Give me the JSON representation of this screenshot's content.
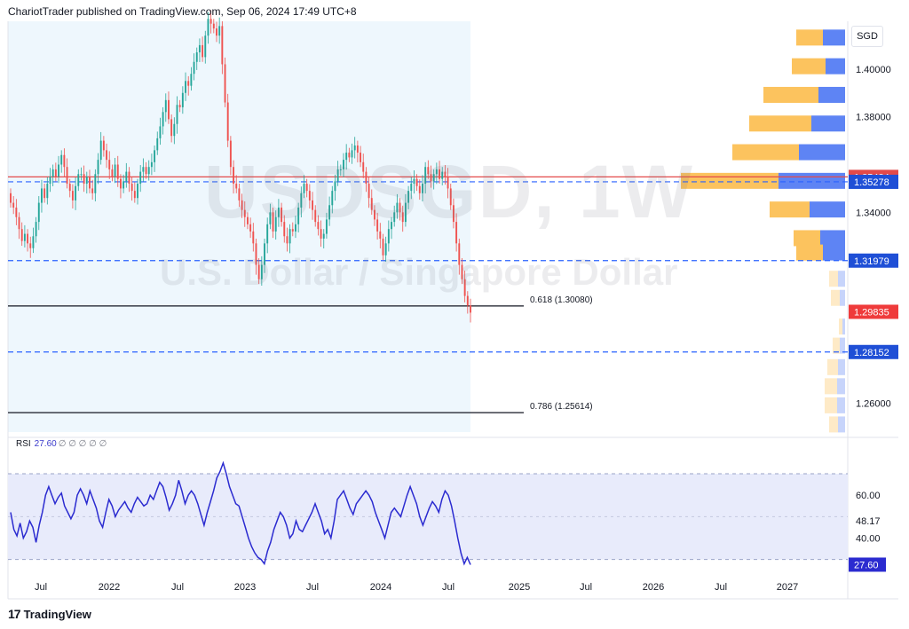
{
  "header": {
    "publisher_line": "ChariotTrader published on TradingView.com, Sep 06, 2024 17:49 UTC+8"
  },
  "symbol_watermark": {
    "title": "USDSGD, 1W",
    "subtitle": "U.S. Dollar / Singapore Dollar"
  },
  "currency_badge": "SGD",
  "footer": {
    "brand": "TradingView",
    "logo_glyph": "17"
  },
  "rsi_label": {
    "name": "RSI",
    "value": "27.60",
    "placeholders": "∅ ∅ ∅ ∅ ∅"
  },
  "colors": {
    "up_candle": "#26a69a",
    "down_candle": "#ef5350",
    "highlight_bg": "#eef7fd",
    "support_dash": "#2962ff",
    "resistance_line": "#e34a4a",
    "fib_line": "#131722",
    "vp_up": "#fcc35e",
    "vp_down": "#5e84f4",
    "rsi_line": "#2b2bd0",
    "rsi_band": "#e8ebfb"
  },
  "chart_data": [
    {
      "type": "candlestick",
      "title": "USDSGD, 1W",
      "subtitle": "U.S. Dollar / Singapore Dollar",
      "ylim": [
        1.248,
        1.42
      ],
      "price_ticks": [
        "1.40000",
        "1.38000",
        "1.34000",
        "1.26000"
      ],
      "price_tick_values": [
        1.4,
        1.38,
        1.34,
        1.26
      ],
      "time_ticks": [
        "Jul",
        "2022",
        "Jul",
        "2023",
        "Jul",
        "2024",
        "Jul",
        "2025",
        "Jul",
        "2026",
        "Jul",
        "2027"
      ],
      "horizontal_lines": [
        {
          "label": "1.35484",
          "value": 1.35484,
          "style": "solid",
          "color": "#e34a4a"
        },
        {
          "label": "1.35278",
          "value": 1.35278,
          "style": "dashed",
          "color": "#2962ff"
        },
        {
          "label": "1.31979",
          "value": 1.31979,
          "style": "dashed",
          "color": "#2962ff"
        },
        {
          "label": "1.28152",
          "value": 1.28152,
          "style": "dashed",
          "color": "#2962ff"
        }
      ],
      "current_price": {
        "label": "1.29835",
        "value": 1.29835
      },
      "fibonacci": [
        {
          "label": "0.618 (1.30080)",
          "value": 1.3008
        },
        {
          "label": "0.786 (1.25614)",
          "value": 1.25614
        }
      ],
      "closes": [
        1.344,
        1.342,
        1.338,
        1.333,
        1.328,
        1.331,
        1.327,
        1.325,
        1.33,
        1.336,
        1.344,
        1.35,
        1.346,
        1.352,
        1.355,
        1.358,
        1.355,
        1.36,
        1.364,
        1.359,
        1.352,
        1.349,
        1.345,
        1.351,
        1.356,
        1.356,
        1.352,
        1.355,
        1.35,
        1.348,
        1.356,
        1.362,
        1.37,
        1.366,
        1.362,
        1.358,
        1.355,
        1.36,
        1.354,
        1.35,
        1.353,
        1.357,
        1.352,
        1.349,
        1.346,
        1.352,
        1.357,
        1.359,
        1.356,
        1.359,
        1.361,
        1.366,
        1.371,
        1.376,
        1.382,
        1.387,
        1.379,
        1.372,
        1.377,
        1.385,
        1.384,
        1.39,
        1.395,
        1.393,
        1.398,
        1.403,
        1.407,
        1.41,
        1.405,
        1.414,
        1.421,
        1.419,
        1.417,
        1.414,
        1.418,
        1.402,
        1.386,
        1.37,
        1.359,
        1.352,
        1.35,
        1.345,
        1.341,
        1.338,
        1.335,
        1.332,
        1.327,
        1.318,
        1.312,
        1.318,
        1.327,
        1.335,
        1.34,
        1.332,
        1.338,
        1.342,
        1.336,
        1.33,
        1.327,
        1.333,
        1.332,
        1.335,
        1.342,
        1.348,
        1.352,
        1.349,
        1.345,
        1.341,
        1.336,
        1.333,
        1.329,
        1.331,
        1.337,
        1.343,
        1.349,
        1.353,
        1.358,
        1.358,
        1.362,
        1.365,
        1.363,
        1.366,
        1.368,
        1.365,
        1.361,
        1.357,
        1.352,
        1.346,
        1.341,
        1.337,
        1.332,
        1.329,
        1.322,
        1.327,
        1.333,
        1.336,
        1.34,
        1.344,
        1.34,
        1.336,
        1.344,
        1.349,
        1.352,
        1.354,
        1.351,
        1.348,
        1.352,
        1.359,
        1.356,
        1.353,
        1.356,
        1.358,
        1.354,
        1.357,
        1.355,
        1.35,
        1.343,
        1.336,
        1.327,
        1.318,
        1.312,
        1.305,
        1.301,
        1.298
      ],
      "x_domain": "weekly bars from Apr 2021 to Sep 2024",
      "volume_profile": [
        {
          "price": 1.413,
          "up": 30,
          "down": 25
        },
        {
          "price": 1.401,
          "up": 38,
          "down": 22
        },
        {
          "price": 1.389,
          "up": 62,
          "down": 30
        },
        {
          "price": 1.377,
          "up": 70,
          "down": 38
        },
        {
          "price": 1.365,
          "up": 75,
          "down": 52
        },
        {
          "price": 1.353,
          "up": 110,
          "down": 75
        },
        {
          "price": 1.341,
          "up": 45,
          "down": 40
        },
        {
          "price": 1.329,
          "up": 30,
          "down": 28
        },
        {
          "price": 1.323,
          "up": 30,
          "down": 25
        },
        {
          "price": 1.312,
          "up": 10,
          "down": 8
        },
        {
          "price": 1.304,
          "up": 10,
          "down": 6
        },
        {
          "price": 1.292,
          "up": 4,
          "down": 3
        },
        {
          "price": 1.284,
          "up": 8,
          "down": 6
        },
        {
          "price": 1.275,
          "up": 12,
          "down": 8
        },
        {
          "price": 1.267,
          "up": 14,
          "down": 9
        },
        {
          "price": 1.259,
          "up": 14,
          "down": 9
        },
        {
          "price": 1.251,
          "up": 10,
          "down": 8
        }
      ]
    },
    {
      "type": "line",
      "title": "RSI",
      "current_value": 27.6,
      "ylim": [
        22,
        82
      ],
      "y_ticks": [
        "60.00",
        "48.17",
        "40.00"
      ],
      "y_tick_values": [
        60.0,
        48.17,
        40.0
      ],
      "band": [
        30,
        70
      ],
      "values": [
        52,
        44,
        41,
        47,
        40,
        43,
        48,
        45,
        38,
        46,
        52,
        60,
        64,
        60,
        56,
        59,
        61,
        55,
        52,
        49,
        52,
        60,
        63,
        60,
        56,
        62,
        58,
        54,
        48,
        45,
        52,
        58,
        55,
        50,
        53,
        55,
        57,
        54,
        52,
        56,
        59,
        57,
        55,
        56,
        60,
        58,
        62,
        66,
        64,
        59,
        53,
        56,
        60,
        67,
        62,
        56,
        60,
        62,
        60,
        56,
        51,
        46,
        52,
        57,
        62,
        68,
        71,
        75,
        70,
        64,
        60,
        56,
        55,
        50,
        45,
        40,
        36,
        33,
        31,
        30,
        28,
        34,
        38,
        44,
        48,
        52,
        50,
        46,
        40,
        42,
        48,
        44,
        43,
        46,
        49,
        52,
        56,
        52,
        48,
        42,
        44,
        40,
        48,
        58,
        60,
        62,
        58,
        54,
        51,
        56,
        58,
        60,
        62,
        60,
        57,
        52,
        48,
        44,
        40,
        46,
        52,
        54,
        52,
        50,
        55,
        60,
        64,
        60,
        56,
        50,
        46,
        50,
        54,
        57,
        55,
        52,
        58,
        62,
        60,
        55,
        48,
        40,
        33,
        28,
        31,
        27.6
      ]
    }
  ]
}
